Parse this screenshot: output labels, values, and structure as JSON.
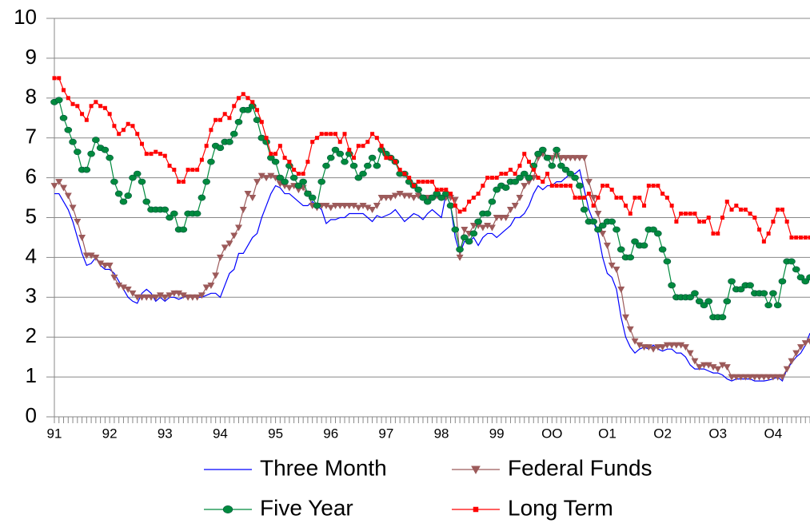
{
  "chart_data": {
    "type": "line",
    "categories": [
      "91",
      null,
      null,
      null,
      null,
      null,
      null,
      null,
      null,
      null,
      null,
      null,
      "92",
      null,
      null,
      null,
      null,
      null,
      null,
      null,
      null,
      null,
      null,
      null,
      "93",
      null,
      null,
      null,
      null,
      null,
      null,
      null,
      null,
      null,
      null,
      null,
      "94",
      null,
      null,
      null,
      null,
      null,
      null,
      null,
      null,
      null,
      null,
      null,
      "95",
      null,
      null,
      null,
      null,
      null,
      null,
      null,
      null,
      null,
      null,
      null,
      "96",
      null,
      null,
      null,
      null,
      null,
      null,
      null,
      null,
      null,
      null,
      null,
      "97",
      null,
      null,
      null,
      null,
      null,
      null,
      null,
      null,
      null,
      null,
      null,
      "98",
      null,
      null,
      null,
      null,
      null,
      null,
      null,
      null,
      null,
      null,
      null,
      "99",
      null,
      null,
      null,
      null,
      null,
      null,
      null,
      null,
      null,
      null,
      null,
      "OO",
      null,
      null,
      null,
      null,
      null,
      null,
      null,
      null,
      null,
      null,
      null,
      "O1",
      null,
      null,
      null,
      null,
      null,
      null,
      null,
      null,
      null,
      null,
      null,
      "O2",
      null,
      null,
      null,
      null,
      null,
      null,
      null,
      null,
      null,
      null,
      null,
      "O3",
      null,
      null,
      null,
      null,
      null,
      null,
      null,
      null,
      null,
      null,
      null,
      "O4",
      null,
      null,
      null,
      null,
      null,
      null,
      null,
      null
    ],
    "series": [
      {
        "name": "Three Month",
        "color": "#0000ff",
        "marker": "none",
        "values": [
          5.6,
          5.6,
          5.4,
          5.2,
          4.9,
          4.5,
          4.1,
          3.8,
          3.85,
          4.0,
          3.8,
          3.7,
          3.7,
          3.6,
          3.4,
          3.2,
          3.0,
          2.9,
          2.85,
          3.1,
          3.2,
          3.1,
          2.9,
          3.0,
          2.9,
          3.0,
          3.0,
          2.95,
          3.0,
          3.05,
          3.05,
          3.0,
          3.0,
          3.05,
          3.1,
          3.1,
          3.0,
          3.3,
          3.6,
          3.7,
          4.1,
          4.1,
          4.3,
          4.5,
          4.6,
          5.0,
          5.3,
          5.6,
          5.8,
          5.75,
          5.6,
          5.6,
          5.5,
          5.4,
          5.3,
          5.3,
          5.4,
          5.3,
          5.2,
          4.85,
          4.95,
          4.95,
          5.0,
          5.0,
          5.1,
          5.1,
          5.1,
          5.1,
          5.0,
          4.9,
          5.05,
          5.0,
          5.05,
          5.1,
          5.2,
          5.05,
          4.9,
          5.0,
          5.1,
          5.05,
          4.95,
          5.1,
          5.2,
          5.1,
          5.0,
          5.6,
          5.3,
          4.5,
          4.1,
          4.4,
          4.4,
          4.5,
          4.3,
          4.5,
          4.6,
          4.6,
          4.5,
          4.6,
          4.7,
          4.8,
          5.0,
          5.0,
          5.1,
          5.3,
          5.6,
          5.8,
          5.7,
          5.8,
          5.8,
          5.9,
          5.9,
          6.0,
          6.1,
          6.1,
          6.2,
          5.7,
          5.2,
          4.9,
          4.6,
          4.0,
          3.6,
          3.5,
          3.2,
          2.5,
          2.0,
          1.75,
          1.6,
          1.7,
          1.75,
          1.7,
          1.8,
          1.7,
          1.65,
          1.7,
          1.7,
          1.6,
          1.6,
          1.5,
          1.3,
          1.2,
          1.2,
          1.2,
          1.15,
          1.1,
          1.1,
          1.05,
          0.95,
          0.9,
          0.95,
          0.95,
          0.95,
          0.95,
          0.9,
          0.9,
          0.9,
          0.92,
          0.95,
          1.0,
          0.9,
          1.2,
          1.35,
          1.5,
          1.6,
          1.8,
          2.1
        ]
      },
      {
        "name": "Federal Funds",
        "color": "#9c5a5a",
        "marker": "triangle-down",
        "values": [
          5.8,
          5.9,
          5.75,
          5.55,
          5.25,
          4.9,
          4.5,
          4.05,
          4.05,
          4.0,
          3.85,
          3.8,
          3.8,
          3.5,
          3.3,
          3.25,
          3.2,
          3.1,
          3.0,
          3.0,
          3.0,
          3.0,
          3.0,
          3.05,
          3.0,
          3.05,
          3.1,
          3.1,
          3.05,
          3.0,
          3.0,
          3.0,
          3.05,
          3.25,
          3.3,
          3.55,
          4.0,
          4.25,
          4.35,
          4.55,
          4.75,
          5.2,
          5.6,
          5.5,
          5.9,
          6.05,
          6.0,
          6.05,
          6.0,
          5.85,
          5.8,
          5.75,
          5.8,
          5.7,
          5.75,
          5.6,
          5.3,
          5.25,
          5.3,
          5.3,
          5.25,
          5.3,
          5.3,
          5.3,
          5.3,
          5.3,
          5.25,
          5.3,
          5.25,
          5.2,
          5.3,
          5.5,
          5.5,
          5.5,
          5.55,
          5.6,
          5.55,
          5.55,
          5.5,
          5.55,
          5.5,
          5.5,
          5.5,
          5.55,
          5.5,
          5.5,
          5.5,
          5.45,
          4.0,
          4.7,
          4.6,
          4.8,
          4.8,
          4.75,
          4.8,
          4.75,
          5.0,
          5.0,
          5.0,
          5.2,
          5.3,
          5.5,
          5.8,
          5.9,
          6.0,
          6.5,
          6.6,
          6.5,
          6.5,
          6.55,
          6.5,
          6.5,
          6.5,
          6.5,
          6.5,
          6.5,
          5.9,
          5.5,
          5.1,
          4.6,
          4.3,
          3.8,
          3.7,
          3.2,
          2.5,
          2.2,
          1.9,
          1.8,
          1.75,
          1.75,
          1.7,
          1.75,
          1.75,
          1.8,
          1.8,
          1.8,
          1.8,
          1.75,
          1.6,
          1.4,
          1.25,
          1.3,
          1.3,
          1.25,
          1.2,
          1.3,
          1.25,
          1.0,
          1.0,
          1.0,
          1.0,
          1.0,
          1.0,
          1.0,
          1.0,
          1.0,
          1.0,
          1.0,
          1.0,
          1.2,
          1.4,
          1.6,
          1.75,
          1.85,
          1.9
        ]
      },
      {
        "name": "Five Year",
        "color": "#008a3e",
        "marker": "circle",
        "values": [
          7.9,
          7.95,
          7.5,
          7.2,
          6.9,
          6.65,
          6.2,
          6.2,
          6.6,
          6.95,
          6.75,
          6.7,
          6.5,
          5.9,
          5.6,
          5.4,
          5.55,
          6.0,
          6.1,
          5.9,
          5.4,
          5.2,
          5.2,
          5.2,
          5.2,
          5.0,
          5.1,
          4.7,
          4.7,
          5.1,
          5.1,
          5.1,
          5.5,
          5.9,
          6.4,
          6.8,
          6.75,
          6.9,
          6.9,
          7.1,
          7.4,
          7.7,
          7.7,
          7.8,
          7.45,
          7.0,
          6.9,
          6.5,
          6.4,
          6.0,
          5.9,
          6.3,
          6.0,
          5.8,
          5.9,
          5.6,
          5.5,
          5.3,
          5.9,
          6.3,
          6.5,
          6.7,
          6.6,
          6.4,
          6.6,
          6.3,
          6.0,
          6.1,
          6.3,
          6.5,
          6.3,
          6.7,
          6.6,
          6.5,
          6.4,
          6.1,
          6.1,
          5.9,
          5.8,
          5.7,
          5.5,
          5.4,
          5.5,
          5.6,
          5.5,
          5.6,
          5.3,
          4.7,
          4.2,
          4.5,
          4.4,
          4.6,
          4.9,
          5.1,
          5.1,
          5.4,
          5.7,
          5.8,
          5.75,
          5.9,
          5.9,
          6.0,
          6.1,
          6.0,
          6.3,
          6.6,
          6.7,
          6.5,
          6.3,
          6.7,
          6.3,
          6.2,
          6.1,
          6.0,
          5.8,
          5.2,
          4.9,
          4.9,
          4.7,
          4.8,
          4.9,
          4.9,
          4.7,
          4.2,
          4.0,
          4.0,
          4.4,
          4.3,
          4.3,
          4.7,
          4.7,
          4.6,
          4.2,
          3.9,
          3.3,
          3.0,
          3.0,
          3.0,
          3.0,
          3.1,
          2.9,
          2.8,
          2.9,
          2.5,
          2.5,
          2.5,
          2.9,
          3.4,
          3.2,
          3.2,
          3.3,
          3.3,
          3.1,
          3.1,
          3.1,
          2.8,
          3.1,
          2.8,
          3.4,
          3.9,
          3.9,
          3.7,
          3.5,
          3.4,
          3.5
        ]
      },
      {
        "name": "Long Term",
        "color": "#ff0000",
        "marker": "square",
        "values": [
          8.5,
          8.5,
          8.2,
          8.0,
          7.85,
          7.8,
          7.6,
          7.45,
          7.8,
          7.9,
          7.8,
          7.75,
          7.6,
          7.3,
          7.1,
          7.2,
          7.35,
          7.3,
          7.1,
          6.85,
          6.6,
          6.6,
          6.65,
          6.6,
          6.55,
          6.3,
          6.2,
          5.9,
          5.9,
          6.2,
          6.2,
          6.2,
          6.45,
          6.8,
          7.2,
          7.45,
          7.45,
          7.6,
          7.5,
          7.8,
          8.0,
          8.1,
          8.0,
          7.9,
          7.7,
          7.4,
          7.0,
          6.6,
          6.6,
          6.8,
          6.5,
          6.4,
          6.2,
          6.1,
          6.1,
          6.4,
          6.9,
          7.0,
          7.1,
          7.1,
          7.1,
          7.1,
          6.9,
          7.1,
          6.7,
          6.5,
          6.8,
          6.8,
          6.9,
          7.1,
          7.0,
          6.8,
          6.5,
          6.5,
          6.4,
          6.2,
          6.1,
          6.0,
          5.8,
          5.9,
          5.9,
          5.9,
          5.9,
          5.7,
          5.7,
          5.7,
          5.6,
          5.3,
          5.15,
          5.2,
          5.4,
          5.5,
          5.6,
          5.8,
          6.0,
          6.0,
          6.0,
          6.1,
          6.1,
          6.2,
          6.1,
          6.3,
          6.6,
          6.4,
          6.2,
          6.0,
          5.9,
          6.1,
          5.8,
          5.8,
          5.8,
          5.8,
          5.8,
          5.5,
          5.5,
          5.5,
          5.6,
          5.3,
          5.5,
          5.8,
          5.8,
          5.7,
          5.5,
          5.5,
          5.3,
          5.1,
          5.5,
          5.5,
          5.3,
          5.8,
          5.8,
          5.8,
          5.6,
          5.5,
          5.3,
          4.9,
          5.1,
          5.1,
          5.1,
          5.1,
          4.9,
          4.9,
          5.0,
          4.6,
          4.6,
          5.0,
          5.4,
          5.2,
          5.3,
          5.2,
          5.2,
          5.1,
          5.0,
          4.7,
          4.4,
          4.6,
          4.9,
          5.2,
          5.2,
          4.9,
          4.5,
          4.5,
          4.5,
          4.5,
          4.5
        ]
      }
    ],
    "ylim": [
      0,
      10
    ],
    "yticks": [
      0,
      1,
      2,
      3,
      4,
      5,
      6,
      7,
      8,
      9,
      10
    ],
    "grid": true,
    "legend": "bottom"
  }
}
